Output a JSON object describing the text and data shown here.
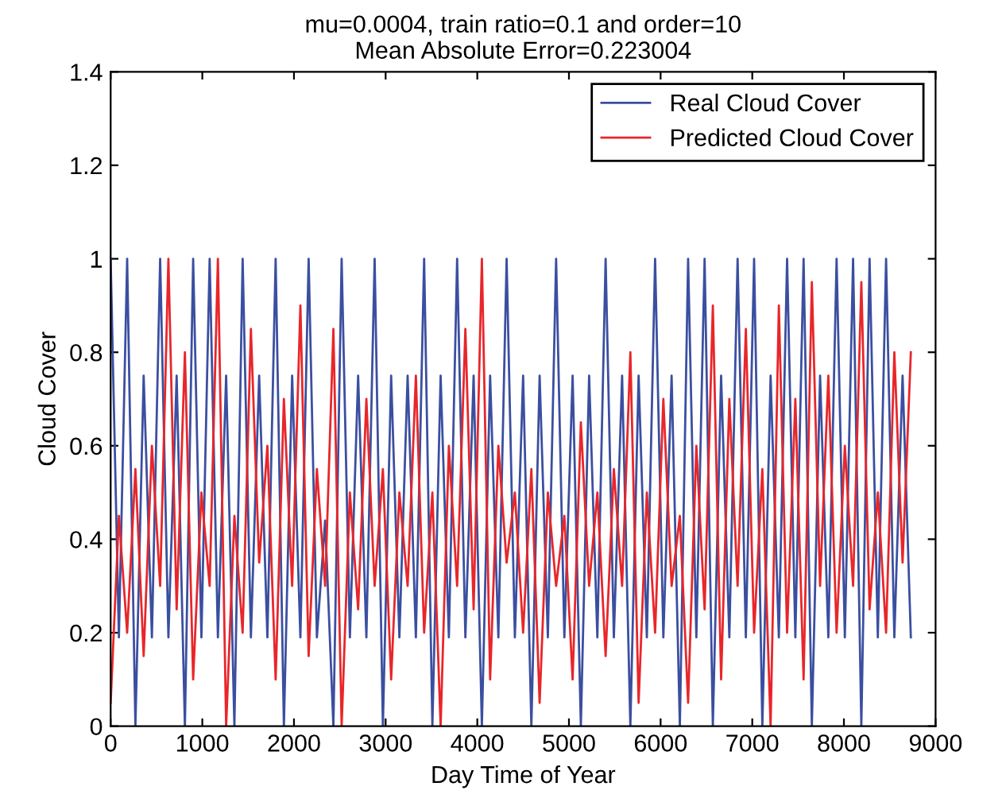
{
  "chart_data": {
    "type": "line",
    "title": "mu=0.0004, train ratio=0.1 and order=10\nMean Absolute Error=0.223004",
    "xlabel": "Day Time of Year",
    "ylabel": "Cloud Cover",
    "xlim": [
      0,
      9000
    ],
    "xticks": [
      0,
      1000,
      2000,
      3000,
      4000,
      5000,
      6000,
      7000,
      8000,
      9000
    ],
    "ylim": [
      0,
      1.4
    ],
    "yticks": [
      0,
      0.2,
      0.4,
      0.6,
      0.8,
      1,
      1.2,
      1.4
    ],
    "grid": false,
    "legend": "top right",
    "marker": "none",
    "line_style": "solid",
    "x": [
      0,
      90,
      180,
      270,
      360,
      450,
      540,
      630,
      720,
      810,
      900,
      990,
      1080,
      1170,
      1260,
      1350,
      1440,
      1530,
      1620,
      1710,
      1800,
      1890,
      1980,
      2070,
      2160,
      2250,
      2340,
      2430,
      2520,
      2610,
      2700,
      2790,
      2880,
      2970,
      3060,
      3150,
      3240,
      3330,
      3420,
      3510,
      3600,
      3690,
      3780,
      3870,
      3960,
      4050,
      4140,
      4230,
      4320,
      4410,
      4500,
      4590,
      4680,
      4770,
      4860,
      4950,
      5040,
      5130,
      5220,
      5310,
      5400,
      5490,
      5580,
      5670,
      5760,
      5850,
      5940,
      6030,
      6120,
      6210,
      6300,
      6390,
      6480,
      6570,
      6660,
      6750,
      6840,
      6930,
      7020,
      7110,
      7200,
      7290,
      7380,
      7470,
      7560,
      7650,
      7740,
      7830,
      7920,
      8010,
      8100,
      8190,
      8280,
      8370,
      8460,
      8550,
      8640,
      8730
    ],
    "series": [
      {
        "name": "Real Cloud Cover",
        "color": "#3b4fa0",
        "values": [
          1,
          0.19,
          1,
          0,
          0.75,
          0.19,
          1,
          0.19,
          0.75,
          0,
          1,
          0.19,
          1,
          0.19,
          0.75,
          0,
          1,
          0.19,
          0.75,
          0.19,
          1,
          0,
          0.75,
          0.19,
          1,
          0.19,
          0.44,
          0,
          1,
          0.19,
          0.75,
          0.19,
          1,
          0,
          0.75,
          0.19,
          0.75,
          0.19,
          1,
          0,
          0.75,
          0.19,
          1,
          0.19,
          0.75,
          0,
          0.75,
          0.19,
          1,
          0.19,
          0.75,
          0,
          0.75,
          0.19,
          1,
          0.19,
          0.75,
          0,
          0.75,
          0.19,
          1,
          0.19,
          0.75,
          0,
          0.75,
          0.19,
          1,
          0.19,
          0.75,
          0,
          1,
          0.19,
          1,
          0,
          0.75,
          0.19,
          1,
          0.19,
          1,
          0,
          0.75,
          0.19,
          1,
          0.19,
          1,
          0,
          0.75,
          0.19,
          1,
          0.19,
          1,
          0,
          1,
          0.19,
          1,
          0.19,
          0.75,
          0.19
        ]
      },
      {
        "name": "Predicted Cloud Cover",
        "color": "#e8262a",
        "values": [
          0.05,
          0.45,
          0.2,
          0.55,
          0.15,
          0.6,
          0.3,
          1,
          0.25,
          0.8,
          0.1,
          0.5,
          0.3,
          1,
          0,
          0.45,
          0.2,
          0.85,
          0.35,
          0.6,
          0.1,
          0.7,
          0.3,
          0.9,
          0.15,
          0.55,
          0.3,
          0.85,
          0,
          0.5,
          0.25,
          0.7,
          0.3,
          0.55,
          0.1,
          0.5,
          0.3,
          0.75,
          0.2,
          0.5,
          0,
          0.6,
          0.3,
          0.85,
          0.25,
          1,
          0.1,
          0.6,
          0.35,
          0.5,
          0.2,
          0.55,
          0.05,
          0.5,
          0.3,
          0.45,
          0.1,
          0.65,
          0.3,
          0.5,
          0.15,
          0.55,
          0.3,
          0.8,
          0.05,
          0.5,
          0.2,
          0.7,
          0.3,
          0.45,
          0.05,
          0.6,
          0.25,
          0.9,
          0.1,
          0.7,
          0.3,
          0.85,
          0.2,
          0.55,
          0,
          0.9,
          0.2,
          0.7,
          0.1,
          0.95,
          0.3,
          0.75,
          0.2,
          0.6,
          0.3,
          0.95,
          0.25,
          0.5,
          0.2,
          0.8,
          0.35,
          0.8
        ]
      }
    ]
  }
}
